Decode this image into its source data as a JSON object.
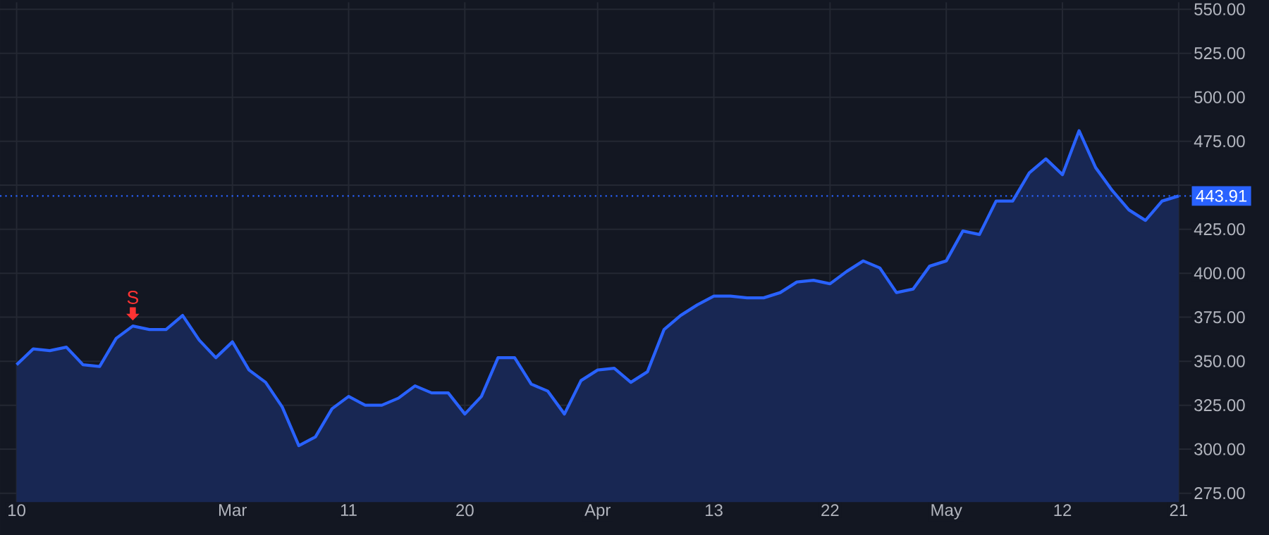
{
  "chart_data": {
    "type": "area",
    "categories": [
      "10",
      null,
      null,
      null,
      null,
      null,
      null,
      null,
      null,
      null,
      null,
      null,
      null,
      "Mar",
      null,
      null,
      null,
      null,
      null,
      null,
      "11",
      null,
      null,
      null,
      null,
      null,
      null,
      "20",
      null,
      null,
      null,
      null,
      null,
      null,
      null,
      "Apr",
      null,
      null,
      null,
      null,
      null,
      null,
      "13",
      null,
      null,
      null,
      null,
      null,
      null,
      "22",
      null,
      null,
      null,
      null,
      null,
      null,
      "May",
      null,
      null,
      null,
      null,
      null,
      null,
      "12",
      null,
      null,
      null,
      null,
      null,
      null,
      "21"
    ],
    "series": [
      {
        "color": "#2962ff",
        "values": [
          348,
          357,
          356,
          358,
          348,
          347,
          363,
          370,
          368,
          368,
          376,
          362,
          352,
          361,
          345,
          338,
          324,
          302,
          307,
          323,
          330,
          325,
          325,
          329,
          336,
          332,
          332,
          320,
          330,
          352,
          352,
          337,
          333,
          320,
          339,
          345,
          346,
          338,
          344,
          368,
          376,
          382,
          387,
          387,
          386,
          386,
          389,
          395,
          396,
          394,
          401,
          407,
          403,
          389,
          391,
          404,
          407,
          424,
          422,
          441,
          441,
          457,
          465,
          456,
          481,
          460,
          447,
          436,
          430,
          441,
          443.91
        ]
      }
    ],
    "ylim": [
      270,
      554
    ],
    "yticks": [
      {
        "value": 275,
        "label": "275.00"
      },
      {
        "value": 300,
        "label": "300.00"
      },
      {
        "value": 325,
        "label": "325.00"
      },
      {
        "value": 350,
        "label": "350.00"
      },
      {
        "value": 375,
        "label": "375.00"
      },
      {
        "value": 400,
        "label": "400.00"
      },
      {
        "value": 425,
        "label": "425.00"
      },
      {
        "value": 450,
        "label": null
      },
      {
        "value": 475,
        "label": "475.00"
      },
      {
        "value": 500,
        "label": "500.00"
      },
      {
        "value": 525,
        "label": "525.00"
      },
      {
        "value": 550,
        "label": "550.00"
      }
    ],
    "grid": true,
    "annotations": [
      {
        "text": "S",
        "y": 370
      }
    ],
    "ref_lines": [
      {
        "axis": "y",
        "value": 443.91,
        "label": "443.91",
        "color": "#2962ff",
        "line_style": "dotted"
      }
    ]
  }
}
